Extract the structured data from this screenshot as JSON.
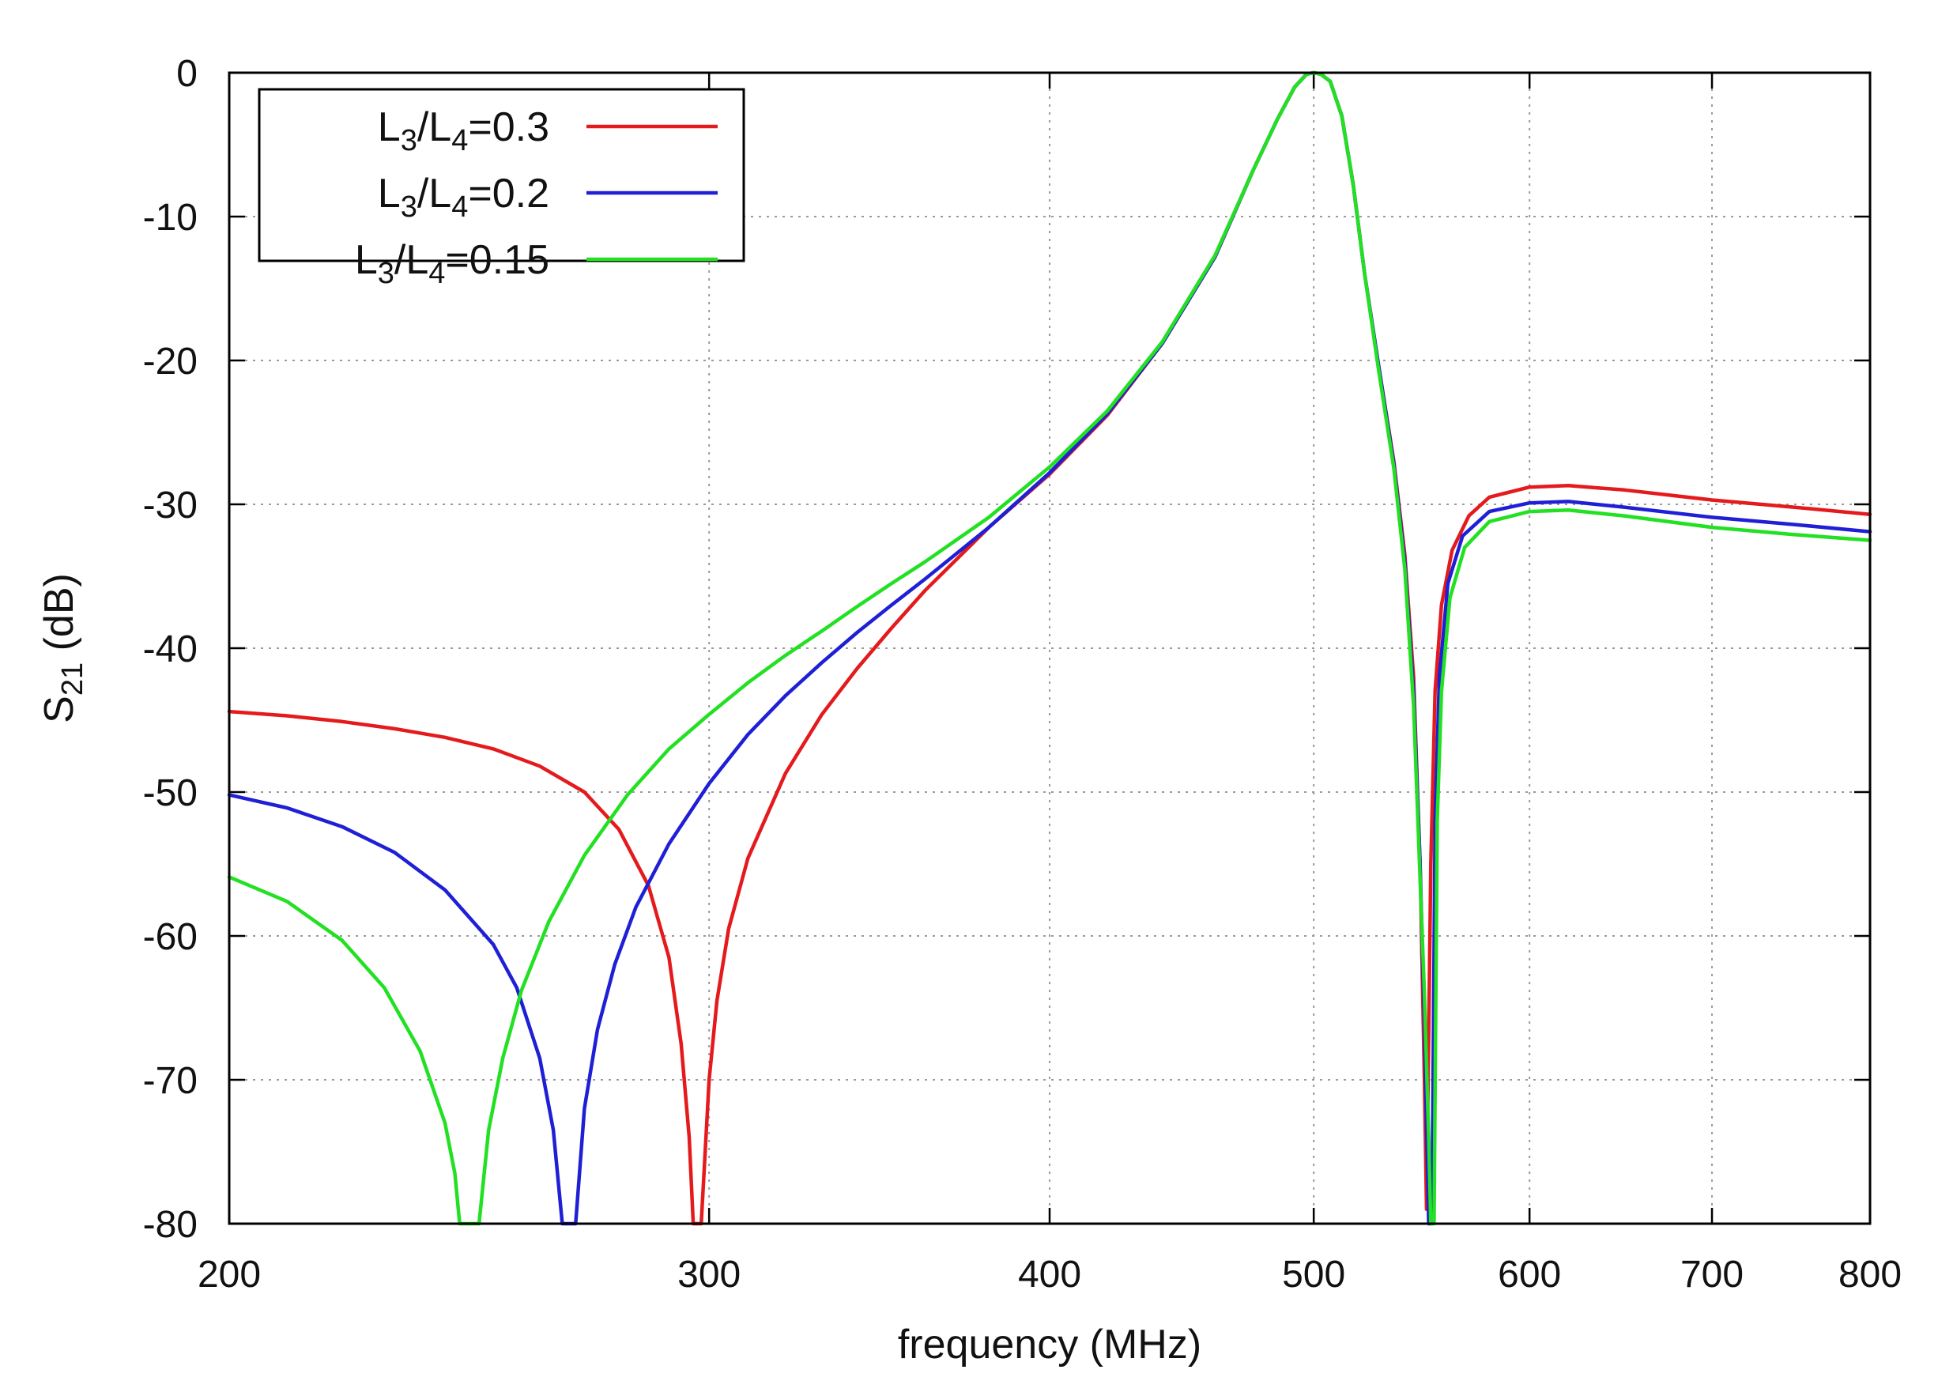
{
  "chart_data": {
    "type": "line",
    "title": "",
    "xlabel": "frequency  (MHz)",
    "ylabel": {
      "main": "S",
      "sub": "21",
      "unit": " (dB)"
    },
    "x_scale": "log",
    "xlim": [
      200,
      800
    ],
    "ylim": [
      -80,
      0
    ],
    "x_ticks": [
      200,
      300,
      400,
      500,
      600,
      700,
      800
    ],
    "y_ticks": [
      0,
      -10,
      -20,
      -30,
      -40,
      -50,
      -60,
      -70,
      -80
    ],
    "grid": true,
    "legend_position": "top-left",
    "series": [
      {
        "name": "L3/L4=0.3",
        "legend": {
          "a": "L",
          "a_sub": "3",
          "b": "/L",
          "b_sub": "4",
          "value": "=0.3"
        },
        "color": "#e41a1c",
        "points": [
          [
            200,
            -44.4
          ],
          [
            210,
            -44.7
          ],
          [
            220,
            -45.1
          ],
          [
            230,
            -45.6
          ],
          [
            240,
            -46.2
          ],
          [
            250,
            -47.0
          ],
          [
            260,
            -48.2
          ],
          [
            270,
            -50.0
          ],
          [
            278,
            -52.6
          ],
          [
            285,
            -56.5
          ],
          [
            290,
            -61.5
          ],
          [
            293,
            -67.5
          ],
          [
            295,
            -74.0
          ],
          [
            296,
            -80
          ],
          [
            298,
            -80
          ],
          [
            300,
            -70.0
          ],
          [
            302,
            -64.5
          ],
          [
            305,
            -59.5
          ],
          [
            310,
            -54.6
          ],
          [
            320,
            -48.7
          ],
          [
            330,
            -44.6
          ],
          [
            340,
            -41.4
          ],
          [
            350,
            -38.6
          ],
          [
            360,
            -36.0
          ],
          [
            380,
            -31.6
          ],
          [
            400,
            -27.9
          ],
          [
            420,
            -23.8
          ],
          [
            440,
            -18.8
          ],
          [
            460,
            -12.8
          ],
          [
            475,
            -6.8
          ],
          [
            485,
            -3.2
          ],
          [
            492,
            -1.0
          ],
          [
            497,
            -0.1
          ],
          [
            500,
            0
          ],
          [
            503,
            -0.1
          ],
          [
            507,
            -0.6
          ],
          [
            512,
            -3.0
          ],
          [
            517,
            -7.8
          ],
          [
            522,
            -14.0
          ],
          [
            528,
            -20.2
          ],
          [
            535,
            -27.0
          ],
          [
            540,
            -33.5
          ],
          [
            544,
            -42.0
          ],
          [
            547,
            -55.0
          ],
          [
            549,
            -70.0
          ],
          [
            550,
            -79
          ],
          [
            552,
            -55.0
          ],
          [
            554,
            -43.0
          ],
          [
            557,
            -37.0
          ],
          [
            562,
            -33.2
          ],
          [
            570,
            -30.8
          ],
          [
            580,
            -29.5
          ],
          [
            600,
            -28.8
          ],
          [
            620,
            -28.7
          ],
          [
            650,
            -29.0
          ],
          [
            700,
            -29.7
          ],
          [
            750,
            -30.2
          ],
          [
            800,
            -30.7
          ]
        ]
      },
      {
        "name": "L3/L4=0.2",
        "legend": {
          "a": "L",
          "a_sub": "3",
          "b": "/L",
          "b_sub": "4",
          "value": "=0.2"
        },
        "color": "#1f1fd6",
        "points": [
          [
            200,
            -50.2
          ],
          [
            210,
            -51.1
          ],
          [
            220,
            -52.4
          ],
          [
            230,
            -54.2
          ],
          [
            240,
            -56.8
          ],
          [
            250,
            -60.6
          ],
          [
            255,
            -63.6
          ],
          [
            260,
            -68.5
          ],
          [
            263,
            -73.5
          ],
          [
            265,
            -80
          ],
          [
            268,
            -80
          ],
          [
            270,
            -72.0
          ],
          [
            273,
            -66.5
          ],
          [
            277,
            -62.0
          ],
          [
            282,
            -58.0
          ],
          [
            290,
            -53.6
          ],
          [
            300,
            -49.4
          ],
          [
            310,
            -46.0
          ],
          [
            320,
            -43.3
          ],
          [
            330,
            -41.0
          ],
          [
            340,
            -38.9
          ],
          [
            350,
            -37.0
          ],
          [
            360,
            -35.2
          ],
          [
            380,
            -31.6
          ],
          [
            400,
            -27.8
          ],
          [
            420,
            -23.7
          ],
          [
            440,
            -18.8
          ],
          [
            460,
            -12.8
          ],
          [
            475,
            -6.8
          ],
          [
            485,
            -3.2
          ],
          [
            492,
            -1.0
          ],
          [
            497,
            -0.1
          ],
          [
            500,
            0
          ],
          [
            503,
            -0.1
          ],
          [
            507,
            -0.6
          ],
          [
            512,
            -3.0
          ],
          [
            517,
            -7.8
          ],
          [
            522,
            -14.0
          ],
          [
            528,
            -20.2
          ],
          [
            535,
            -27.2
          ],
          [
            540,
            -34.0
          ],
          [
            544,
            -43.0
          ],
          [
            547,
            -55.0
          ],
          [
            549,
            -66.0
          ],
          [
            551,
            -80
          ],
          [
            552.5,
            -80
          ],
          [
            554,
            -52.0
          ],
          [
            556,
            -42.0
          ],
          [
            560,
            -35.5
          ],
          [
            567,
            -32.2
          ],
          [
            580,
            -30.5
          ],
          [
            600,
            -29.9
          ],
          [
            620,
            -29.8
          ],
          [
            650,
            -30.2
          ],
          [
            700,
            -30.9
          ],
          [
            750,
            -31.4
          ],
          [
            800,
            -31.9
          ]
        ]
      },
      {
        "name": "L3/L4=0.15",
        "legend": {
          "a": "L",
          "a_sub": "3",
          "b": "/L",
          "b_sub": "4",
          "value": "=0.15"
        },
        "color": "#22e022",
        "points": [
          [
            200,
            -55.9
          ],
          [
            210,
            -57.6
          ],
          [
            220,
            -60.3
          ],
          [
            228,
            -63.6
          ],
          [
            235,
            -68.0
          ],
          [
            240,
            -73.0
          ],
          [
            242,
            -76.5
          ],
          [
            243,
            -80
          ],
          [
            247,
            -80
          ],
          [
            249,
            -73.5
          ],
          [
            252,
            -68.5
          ],
          [
            256,
            -63.8
          ],
          [
            262,
            -59.0
          ],
          [
            270,
            -54.4
          ],
          [
            280,
            -50.2
          ],
          [
            290,
            -47.0
          ],
          [
            300,
            -44.6
          ],
          [
            310,
            -42.4
          ],
          [
            320,
            -40.5
          ],
          [
            330,
            -38.8
          ],
          [
            340,
            -37.1
          ],
          [
            350,
            -35.5
          ],
          [
            360,
            -34.0
          ],
          [
            380,
            -30.9
          ],
          [
            400,
            -27.4
          ],
          [
            420,
            -23.5
          ],
          [
            440,
            -18.7
          ],
          [
            460,
            -12.7
          ],
          [
            475,
            -6.8
          ],
          [
            485,
            -3.2
          ],
          [
            492,
            -1.0
          ],
          [
            497,
            -0.1
          ],
          [
            500,
            0
          ],
          [
            503,
            -0.1
          ],
          [
            507,
            -0.6
          ],
          [
            512,
            -3.0
          ],
          [
            517,
            -7.8
          ],
          [
            522,
            -14.0
          ],
          [
            528,
            -20.5
          ],
          [
            535,
            -27.5
          ],
          [
            540,
            -34.5
          ],
          [
            544,
            -44.0
          ],
          [
            547,
            -56.0
          ],
          [
            549,
            -64.0
          ],
          [
            551,
            -74.0
          ],
          [
            552,
            -80
          ],
          [
            553.5,
            -80
          ],
          [
            555,
            -52.0
          ],
          [
            557,
            -43.0
          ],
          [
            561,
            -36.5
          ],
          [
            568,
            -33.0
          ],
          [
            580,
            -31.2
          ],
          [
            600,
            -30.5
          ],
          [
            620,
            -30.4
          ],
          [
            650,
            -30.8
          ],
          [
            700,
            -31.6
          ],
          [
            750,
            -32.1
          ],
          [
            800,
            -32.5
          ]
        ]
      }
    ]
  }
}
